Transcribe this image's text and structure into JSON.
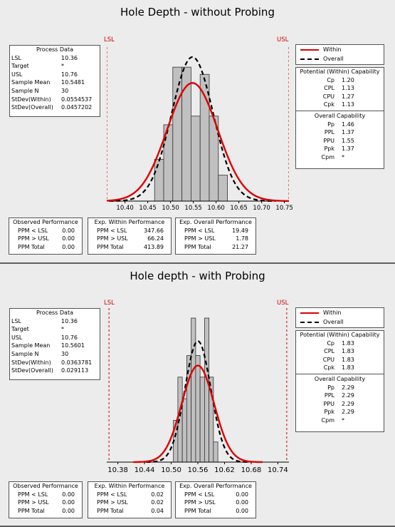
{
  "chart_data": [
    {
      "type": "histogram",
      "title": "Hole Depth - without Probing",
      "xlim": [
        10.36,
        10.76
      ],
      "ylim": [
        0,
        1
      ],
      "spec_labels": {
        "lsl": "LSL",
        "usl": "USL"
      },
      "x_ticks": [
        "10.40",
        "10.45",
        "10.50",
        "10.55",
        "10.60",
        "10.65",
        "10.70",
        "10.75"
      ],
      "x_tick_values": [
        10.4,
        10.45,
        10.5,
        10.55,
        10.6,
        10.65,
        10.7,
        10.75
      ],
      "bins": [
        {
          "x0": 10.465,
          "x1": 10.485,
          "h": 0.29
        },
        {
          "x0": 10.485,
          "x1": 10.505,
          "h": 0.53
        },
        {
          "x0": 10.505,
          "x1": 10.525,
          "h": 0.93
        },
        {
          "x0": 10.525,
          "x1": 10.545,
          "h": 0.93
        },
        {
          "x0": 10.545,
          "x1": 10.565,
          "h": 0.59
        },
        {
          "x0": 10.565,
          "x1": 10.585,
          "h": 0.88
        },
        {
          "x0": 10.585,
          "x1": 10.605,
          "h": 0.59
        },
        {
          "x0": 10.605,
          "x1": 10.625,
          "h": 0.18
        }
      ],
      "curves": {
        "mean": 10.5481,
        "sd_within": 0.0554537,
        "sd_overall": 0.0457202,
        "peak_within": 0.82,
        "peak_overall": 1.0
      },
      "legend": [
        "Within",
        "Overall"
      ],
      "process_data": {
        "title": "Process Data",
        "rows": [
          {
            "k": "LSL",
            "v": "10.36"
          },
          {
            "k": "Target",
            "v": "*"
          },
          {
            "k": "USL",
            "v": "10.76"
          },
          {
            "k": "Sample Mean",
            "v": "10.5481"
          },
          {
            "k": "Sample N",
            "v": "30"
          },
          {
            "k": "StDev(Within)",
            "v": "0.0554537"
          },
          {
            "k": "StDev(Overall)",
            "v": "0.0457202"
          }
        ]
      },
      "potential_capability": {
        "title": "Potential (Within) Capability",
        "rows": [
          {
            "k": "Cp",
            "v": "1.20"
          },
          {
            "k": "CPL",
            "v": "1.13"
          },
          {
            "k": "CPU",
            "v": "1.27"
          },
          {
            "k": "Cpk",
            "v": "1.13"
          }
        ]
      },
      "overall_capability": {
        "title": "Overall Capability",
        "rows": [
          {
            "k": "Pp",
            "v": "1.46"
          },
          {
            "k": "PPL",
            "v": "1.37"
          },
          {
            "k": "PPU",
            "v": "1.55"
          },
          {
            "k": "Ppk",
            "v": "1.37"
          },
          {
            "k": "Cpm",
            "v": "*"
          }
        ]
      },
      "observed": {
        "title": "Observed Performance",
        "rows": [
          {
            "k": "PPM < LSL",
            "v": "0.00"
          },
          {
            "k": "PPM > USL",
            "v": "0.00"
          },
          {
            "k": "PPM Total",
            "v": "0.00"
          }
        ]
      },
      "exp_within": {
        "title": "Exp. Within Performance",
        "rows": [
          {
            "k": "PPM < LSL",
            "v": "347.66"
          },
          {
            "k": "PPM > USL",
            "v": "66.24"
          },
          {
            "k": "PPM Total",
            "v": "413.89"
          }
        ]
      },
      "exp_overall": {
        "title": "Exp. Overall Performance",
        "rows": [
          {
            "k": "PPM < LSL",
            "v": "19.49"
          },
          {
            "k": "PPM > USL",
            "v": "1.78"
          },
          {
            "k": "PPM Total",
            "v": "21.27"
          }
        ]
      }
    },
    {
      "type": "histogram",
      "title": "Hole depth - with Probing",
      "xlim": [
        10.355,
        10.765
      ],
      "ylim": [
        0,
        1
      ],
      "spec_labels": {
        "lsl": "LSL",
        "usl": "USL"
      },
      "x_ticks": [
        "10.38",
        "10.44",
        "10.50",
        "10.56",
        "10.62",
        "10.68",
        "10.74"
      ],
      "x_tick_values": [
        10.38,
        10.44,
        10.5,
        10.56,
        10.62,
        10.68,
        10.74
      ],
      "bins": [
        {
          "x0": 10.505,
          "x1": 10.515,
          "h": 0.29
        },
        {
          "x0": 10.515,
          "x1": 10.525,
          "h": 0.59
        },
        {
          "x0": 10.525,
          "x1": 10.535,
          "h": 0.44
        },
        {
          "x0": 10.535,
          "x1": 10.545,
          "h": 0.74
        },
        {
          "x0": 10.545,
          "x1": 10.555,
          "h": 1.0
        },
        {
          "x0": 10.555,
          "x1": 10.565,
          "h": 0.74
        },
        {
          "x0": 10.565,
          "x1": 10.575,
          "h": 0.59
        },
        {
          "x0": 10.575,
          "x1": 10.585,
          "h": 1.0
        },
        {
          "x0": 10.585,
          "x1": 10.595,
          "h": 0.59
        },
        {
          "x0": 10.595,
          "x1": 10.605,
          "h": 0.14
        }
      ],
      "curves": {
        "mean": 10.5601,
        "sd_within": 0.0363781,
        "sd_overall": 0.029113,
        "peak_within": 0.67,
        "peak_overall": 0.84
      },
      "legend": [
        "Within",
        "Overall"
      ],
      "process_data": {
        "title": "Process Data",
        "rows": [
          {
            "k": "LSL",
            "v": "10.36"
          },
          {
            "k": "Target",
            "v": "*"
          },
          {
            "k": "USL",
            "v": "10.76"
          },
          {
            "k": "Sample Mean",
            "v": "10.5601"
          },
          {
            "k": "Sample N",
            "v": "30"
          },
          {
            "k": "StDev(Within)",
            "v": "0.0363781"
          },
          {
            "k": "StDev(Overall)",
            "v": "0.029113"
          }
        ]
      },
      "potential_capability": {
        "title": "Potential (Within) Capability",
        "rows": [
          {
            "k": "Cp",
            "v": "1.83"
          },
          {
            "k": "CPL",
            "v": "1.83"
          },
          {
            "k": "CPU",
            "v": "1.83"
          },
          {
            "k": "Cpk",
            "v": "1.83"
          }
        ]
      },
      "overall_capability": {
        "title": "Overall Capability",
        "rows": [
          {
            "k": "Pp",
            "v": "2.29"
          },
          {
            "k": "PPL",
            "v": "2.29"
          },
          {
            "k": "PPU",
            "v": "2.29"
          },
          {
            "k": "Ppk",
            "v": "2.29"
          },
          {
            "k": "Cpm",
            "v": "*"
          }
        ]
      },
      "observed": {
        "title": "Observed Performance",
        "rows": [
          {
            "k": "PPM < LSL",
            "v": "0.00"
          },
          {
            "k": "PPM > USL",
            "v": "0.00"
          },
          {
            "k": "PPM Total",
            "v": "0.00"
          }
        ]
      },
      "exp_within": {
        "title": "Exp. Within Performance",
        "rows": [
          {
            "k": "PPM < LSL",
            "v": "0.02"
          },
          {
            "k": "PPM > USL",
            "v": "0.02"
          },
          {
            "k": "PPM Total",
            "v": "0.04"
          }
        ]
      },
      "exp_overall": {
        "title": "Exp. Overall Performance",
        "rows": [
          {
            "k": "PPM < LSL",
            "v": "0.00"
          },
          {
            "k": "PPM > USL",
            "v": "0.00"
          },
          {
            "k": "PPM Total",
            "v": "0.00"
          }
        ]
      }
    }
  ],
  "colors": {
    "within": "#dd0000",
    "overall": "#000000",
    "bar_fill": "#c0c0c0",
    "spec": "#cc0000"
  }
}
